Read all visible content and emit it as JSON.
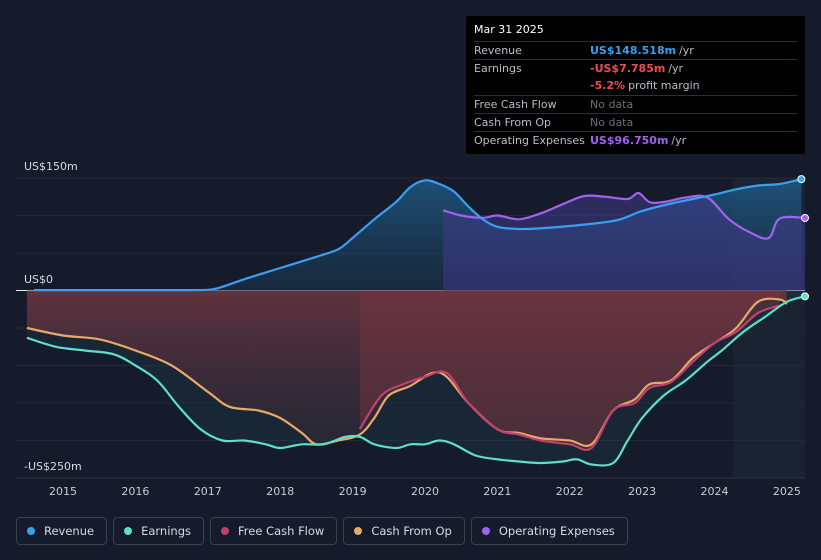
{
  "tooltip": {
    "date": "Mar 31 2025",
    "rows": [
      {
        "label": "Revenue",
        "value": "US$148.518m",
        "unit": "/yr"
      },
      {
        "label": "Earnings",
        "value": "-US$7.785m",
        "unit": "/yr"
      },
      {
        "label": "",
        "value": "-5.2%",
        "unit": "profit margin"
      },
      {
        "label": "Free Cash Flow",
        "value": "No data",
        "unit": ""
      },
      {
        "label": "Cash From Op",
        "value": "No data",
        "unit": ""
      },
      {
        "label": "Operating Expenses",
        "value": "US$96.750m",
        "unit": "/yr"
      }
    ]
  },
  "legend": [
    {
      "label": "Revenue",
      "color": "#3a9ff0"
    },
    {
      "label": "Earnings",
      "color": "#5de0c6"
    },
    {
      "label": "Free Cash Flow",
      "color": "#c2406c"
    },
    {
      "label": "Cash From Op",
      "color": "#e8a868"
    },
    {
      "label": "Operating Expenses",
      "color": "#a361f0"
    }
  ],
  "chart_data": {
    "type": "area",
    "title": "",
    "y_labels": {
      "top": "US$150m",
      "zero": "US$0",
      "bottom": "-US$250m"
    },
    "ylim": [
      -250,
      150
    ],
    "xlim": [
      2014.35,
      2025.25
    ],
    "x_ticks": [
      "2015",
      "2016",
      "2017",
      "2018",
      "2019",
      "2020",
      "2021",
      "2022",
      "2023",
      "2024",
      "2025"
    ],
    "x_tick_values": [
      2015,
      2016,
      2017,
      2018,
      2019,
      2020,
      2021,
      2022,
      2023,
      2024,
      2025
    ],
    "series": [
      {
        "name": "Revenue",
        "color": "#3a9ff0",
        "points": [
          [
            2014.6,
            0.5
          ],
          [
            2015.5,
            0.5
          ],
          [
            2016.5,
            0.5
          ],
          [
            2017.0,
            1
          ],
          [
            2017.2,
            5
          ],
          [
            2017.5,
            15
          ],
          [
            2018.0,
            30
          ],
          [
            2018.5,
            45
          ],
          [
            2018.8,
            55
          ],
          [
            2019.0,
            70
          ],
          [
            2019.3,
            95
          ],
          [
            2019.6,
            118
          ],
          [
            2019.8,
            138
          ],
          [
            2020.0,
            147
          ],
          [
            2020.2,
            142
          ],
          [
            2020.4,
            132
          ],
          [
            2020.6,
            112
          ],
          [
            2020.8,
            95
          ],
          [
            2021.0,
            85
          ],
          [
            2021.3,
            82
          ],
          [
            2021.6,
            83
          ],
          [
            2022.0,
            86
          ],
          [
            2022.4,
            90
          ],
          [
            2022.7,
            95
          ],
          [
            2023.0,
            106
          ],
          [
            2023.4,
            116
          ],
          [
            2023.8,
            124
          ],
          [
            2024.0,
            128
          ],
          [
            2024.3,
            135
          ],
          [
            2024.6,
            140
          ],
          [
            2024.9,
            142
          ],
          [
            2025.2,
            148.5
          ]
        ]
      },
      {
        "name": "Earnings",
        "color": "#5de0c6",
        "points": [
          [
            2014.5,
            -63
          ],
          [
            2014.9,
            -75
          ],
          [
            2015.3,
            -80
          ],
          [
            2015.7,
            -85
          ],
          [
            2016.0,
            -100
          ],
          [
            2016.3,
            -120
          ],
          [
            2016.6,
            -155
          ],
          [
            2016.9,
            -185
          ],
          [
            2017.2,
            -200
          ],
          [
            2017.5,
            -200
          ],
          [
            2017.8,
            -205
          ],
          [
            2018.0,
            -210
          ],
          [
            2018.3,
            -205
          ],
          [
            2018.6,
            -205
          ],
          [
            2018.9,
            -195
          ],
          [
            2019.1,
            -195
          ],
          [
            2019.3,
            -205
          ],
          [
            2019.6,
            -210
          ],
          [
            2019.8,
            -205
          ],
          [
            2020.0,
            -205
          ],
          [
            2020.2,
            -200
          ],
          [
            2020.4,
            -205
          ],
          [
            2020.7,
            -220
          ],
          [
            2021.0,
            -225
          ],
          [
            2021.3,
            -228
          ],
          [
            2021.6,
            -230
          ],
          [
            2021.9,
            -228
          ],
          [
            2022.1,
            -225
          ],
          [
            2022.3,
            -232
          ],
          [
            2022.6,
            -230
          ],
          [
            2022.8,
            -200
          ],
          [
            2023.0,
            -170
          ],
          [
            2023.3,
            -140
          ],
          [
            2023.6,
            -120
          ],
          [
            2023.9,
            -95
          ],
          [
            2024.1,
            -80
          ],
          [
            2024.4,
            -55
          ],
          [
            2024.7,
            -35
          ],
          [
            2025.0,
            -15
          ],
          [
            2025.25,
            -7.8
          ]
        ]
      },
      {
        "name": "Free Cash Flow",
        "color": "#c2406c",
        "points": [
          [
            2019.1,
            -185
          ],
          [
            2019.4,
            -140
          ],
          [
            2019.7,
            -125
          ],
          [
            2020.0,
            -115
          ],
          [
            2020.3,
            -110
          ],
          [
            2020.6,
            -150
          ],
          [
            2021.0,
            -185
          ],
          [
            2021.3,
            -192
          ],
          [
            2021.6,
            -200
          ],
          [
            2022.0,
            -205
          ],
          [
            2022.3,
            -210
          ],
          [
            2022.6,
            -160
          ],
          [
            2022.9,
            -150
          ],
          [
            2023.1,
            -130
          ],
          [
            2023.4,
            -122
          ],
          [
            2023.7,
            -95
          ],
          [
            2024.0,
            -70
          ],
          [
            2024.3,
            -55
          ],
          [
            2024.6,
            -30
          ],
          [
            2024.9,
            -20
          ]
        ]
      },
      {
        "name": "Cash From Op",
        "color": "#e8a868",
        "points": [
          [
            2014.5,
            -50
          ],
          [
            2015.0,
            -60
          ],
          [
            2015.5,
            -65
          ],
          [
            2016.0,
            -80
          ],
          [
            2016.5,
            -100
          ],
          [
            2017.0,
            -135
          ],
          [
            2017.3,
            -155
          ],
          [
            2017.7,
            -160
          ],
          [
            2018.0,
            -170
          ],
          [
            2018.3,
            -190
          ],
          [
            2018.5,
            -205
          ],
          [
            2018.8,
            -200
          ],
          [
            2019.1,
            -192
          ],
          [
            2019.3,
            -170
          ],
          [
            2019.5,
            -140
          ],
          [
            2019.8,
            -127
          ],
          [
            2020.1,
            -110
          ],
          [
            2020.3,
            -115
          ],
          [
            2020.6,
            -150
          ],
          [
            2021.0,
            -185
          ],
          [
            2021.3,
            -190
          ],
          [
            2021.6,
            -197
          ],
          [
            2022.0,
            -200
          ],
          [
            2022.3,
            -205
          ],
          [
            2022.6,
            -160
          ],
          [
            2022.9,
            -145
          ],
          [
            2023.1,
            -125
          ],
          [
            2023.4,
            -120
          ],
          [
            2023.7,
            -90
          ],
          [
            2024.0,
            -70
          ],
          [
            2024.3,
            -50
          ],
          [
            2024.6,
            -15
          ],
          [
            2024.9,
            -12
          ],
          [
            2025.0,
            -18
          ]
        ]
      },
      {
        "name": "Operating Expenses",
        "color": "#a361f0",
        "points": [
          [
            2020.25,
            107
          ],
          [
            2020.5,
            100
          ],
          [
            2020.8,
            97
          ],
          [
            2021.0,
            100
          ],
          [
            2021.3,
            95
          ],
          [
            2021.6,
            103
          ],
          [
            2021.9,
            115
          ],
          [
            2022.2,
            126
          ],
          [
            2022.5,
            125
          ],
          [
            2022.8,
            122
          ],
          [
            2022.95,
            130
          ],
          [
            2023.1,
            118
          ],
          [
            2023.3,
            118
          ],
          [
            2023.6,
            124
          ],
          [
            2023.9,
            124
          ],
          [
            2024.2,
            95
          ],
          [
            2024.5,
            77
          ],
          [
            2024.75,
            70
          ],
          [
            2024.9,
            96
          ],
          [
            2025.25,
            96.75
          ]
        ]
      }
    ]
  }
}
